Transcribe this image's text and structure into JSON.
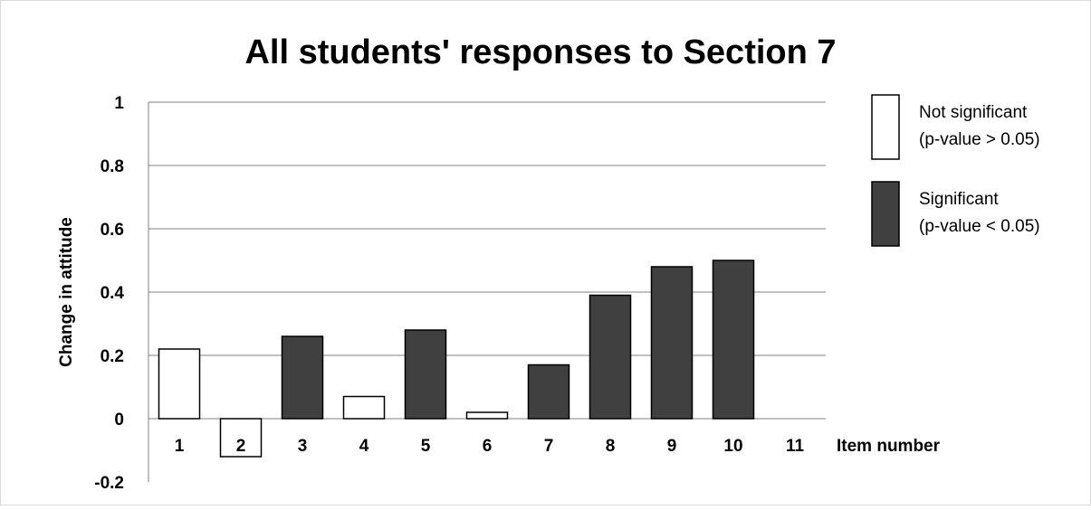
{
  "chart_data": {
    "type": "bar",
    "title": "All students' responses to Section 7",
    "xlabel": "Item number",
    "ylabel": "Change in attitude",
    "ylim": [
      -0.2,
      1
    ],
    "yticks": [
      "-0.2",
      "0",
      "0.2",
      "0.4",
      "0.6",
      "0.8",
      "1"
    ],
    "ytick_values": [
      -0.2,
      0,
      0.2,
      0.4,
      0.6,
      0.8,
      1
    ],
    "categories": [
      "1",
      "2",
      "3",
      "4",
      "5",
      "6",
      "7",
      "8",
      "9",
      "10",
      "11"
    ],
    "values": [
      0.22,
      -0.12,
      0.26,
      0.07,
      0.28,
      0.02,
      0.17,
      0.39,
      0.48,
      0.5,
      null
    ],
    "significant": [
      false,
      false,
      true,
      false,
      true,
      false,
      true,
      true,
      true,
      true,
      null
    ],
    "grid": true,
    "legend_position": "right",
    "legend": [
      {
        "line1": "Not significant",
        "line2": "(p-value > 0.05)",
        "fill": "#ffffff"
      },
      {
        "line1": "Significant",
        "line2": "(p-value < 0.05)",
        "fill": "#404040"
      }
    ]
  },
  "colors": {
    "significant": "#404040",
    "not_significant": "#ffffff",
    "bar_edge": "#000000",
    "grid": "#808080",
    "text": "#000000"
  }
}
